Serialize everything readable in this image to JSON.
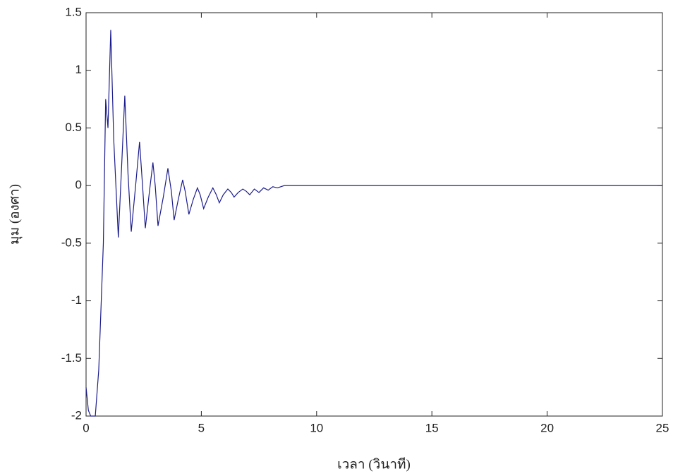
{
  "chart_data": {
    "type": "line",
    "x_label": "เวลา (วินาที)",
    "y_label": "มุม (องศา)",
    "x": [
      0,
      0.1,
      0.2,
      0.4,
      0.55,
      0.75,
      0.85,
      0.95,
      1.07,
      1.2,
      1.4,
      1.55,
      1.68,
      1.82,
      1.96,
      2.15,
      2.32,
      2.45,
      2.57,
      2.75,
      2.9,
      3.0,
      3.12,
      3.35,
      3.55,
      3.7,
      3.82,
      4.0,
      4.19,
      4.3,
      4.46,
      4.65,
      4.83,
      4.95,
      5.1,
      5.3,
      5.5,
      5.65,
      5.78,
      5.95,
      6.15,
      6.3,
      6.42,
      6.6,
      6.8,
      6.95,
      7.1,
      7.3,
      7.5,
      7.7,
      7.9,
      8.1,
      8.3,
      8.6,
      9.0,
      9.5,
      10,
      15,
      20,
      25
    ],
    "values": [
      -1.75,
      -1.95,
      -2,
      -2,
      -1.6,
      -0.5,
      0.75,
      0.5,
      1.35,
      0.4,
      -0.45,
      0.2,
      0.78,
      0.1,
      -0.4,
      0.0,
      0.38,
      0.0,
      -0.37,
      -0.05,
      0.2,
      0.0,
      -0.35,
      -0.1,
      0.15,
      -0.05,
      -0.3,
      -0.12,
      0.05,
      -0.05,
      -0.25,
      -0.12,
      -0.02,
      -0.08,
      -0.2,
      -0.1,
      -0.02,
      -0.08,
      -0.15,
      -0.08,
      -0.03,
      -0.06,
      -0.1,
      -0.06,
      -0.03,
      -0.05,
      -0.08,
      -0.03,
      -0.06,
      -0.02,
      -0.04,
      -0.01,
      -0.02,
      0,
      0,
      0,
      0,
      0,
      0,
      0
    ],
    "color": "#1c1c8c",
    "xlim": [
      0,
      25
    ],
    "xticks": [
      0,
      5,
      10,
      15,
      20,
      25
    ],
    "ylim": [
      -2,
      1.5
    ],
    "yticks": [
      -2,
      -1.5,
      -1,
      -0.5,
      0,
      0.5,
      1,
      1.5
    ],
    "grid": false
  }
}
